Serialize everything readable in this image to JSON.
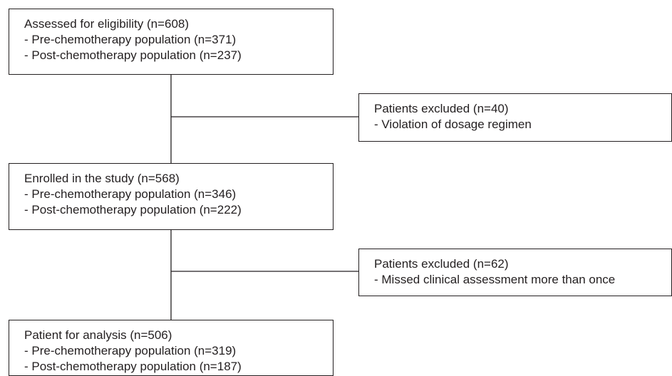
{
  "nodes": [
    {
      "lines": [
        "Assessed for eligibility (n=608)",
        "- Pre-chemotherapy population (n=371)",
        "- Post-chemotherapy population (n=237)"
      ]
    },
    {
      "lines": [
        "Patients excluded (n=40)",
        "- Violation of dosage regimen"
      ]
    },
    {
      "lines": [
        "Enrolled in the study (n=568)",
        "- Pre-chemotherapy population (n=346)",
        "- Post-chemotherapy population (n=222)"
      ]
    },
    {
      "lines": [
        "Patients excluded (n=62)",
        "- Missed clinical assessment more than once"
      ]
    },
    {
      "lines": [
        "Patient for analysis (n=506)",
        "- Pre-chemotherapy population (n=319)",
        "- Post-chemotherapy population (n=187)"
      ]
    }
  ]
}
